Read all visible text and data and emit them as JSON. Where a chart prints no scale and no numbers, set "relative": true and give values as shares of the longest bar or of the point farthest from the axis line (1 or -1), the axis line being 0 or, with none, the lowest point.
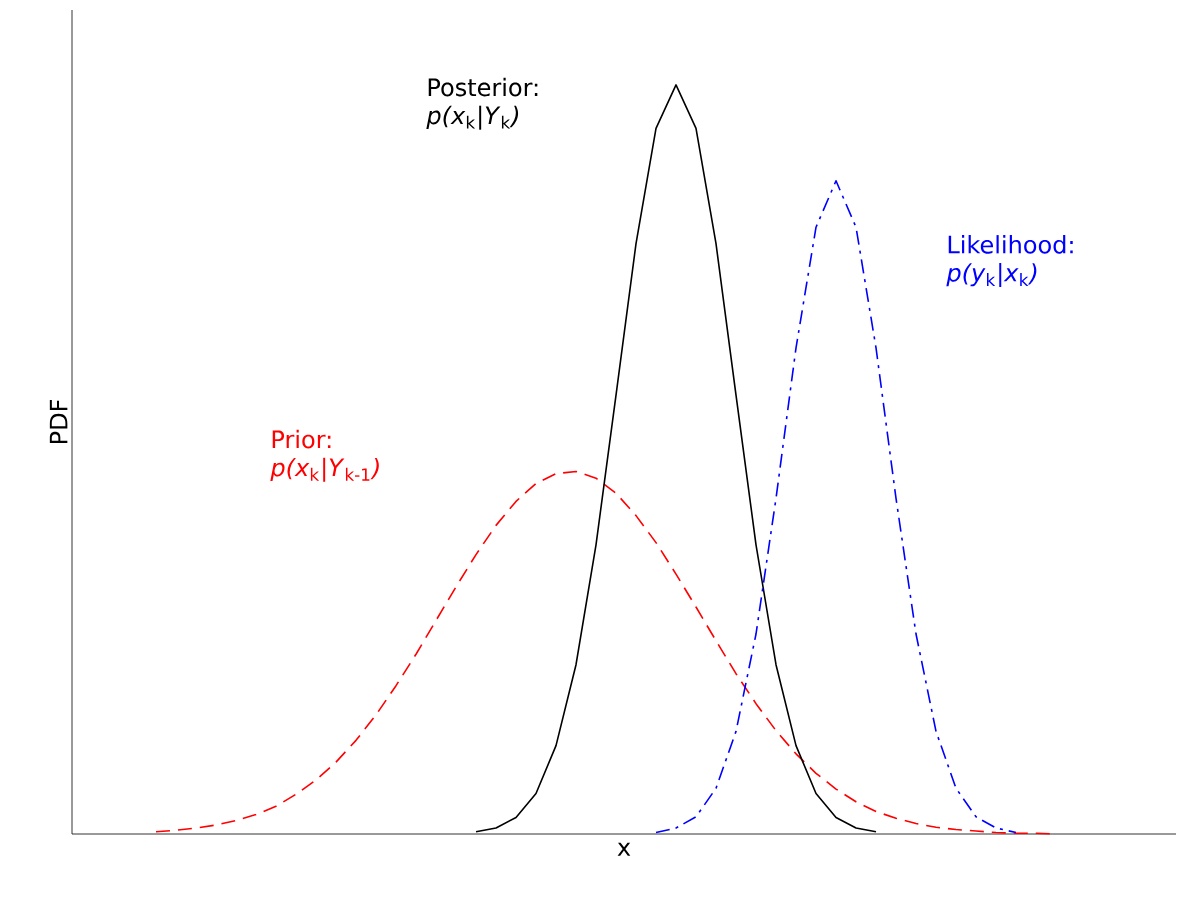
{
  "chart_data": {
    "type": "line",
    "relative": true,
    "xlabel": "x",
    "ylabel": "PDF",
    "categories": [
      null,
      null,
      null,
      null,
      null,
      null,
      null,
      null,
      null,
      null,
      null,
      null,
      null,
      null,
      null,
      null,
      null,
      null,
      null,
      null,
      null,
      null,
      null,
      null,
      null,
      null,
      null,
      null,
      null,
      null,
      null,
      null,
      null,
      null,
      null,
      null,
      null,
      null,
      null,
      null,
      null,
      null,
      null,
      null,
      null,
      null,
      null,
      null,
      null,
      null,
      null,
      null,
      null,
      null,
      null
    ],
    "series": [
      {
        "name": "Prior: *p(x*$_{k}$*|Y*$_{k-1}$*)*",
        "color": "#ff0000",
        "line_style": "dashed",
        "values": [
          null,
          null,
          null,
          null,
          0.003,
          0.005,
          0.008,
          0.012,
          0.018,
          0.026,
          0.037,
          0.053,
          0.072,
          0.096,
          0.125,
          0.159,
          0.198,
          0.24,
          0.285,
          0.33,
          0.373,
          0.412,
          0.444,
          0.468,
          0.481,
          0.484,
          0.475,
          0.455,
          0.425,
          0.389,
          0.347,
          0.303,
          0.258,
          0.214,
          0.174,
          0.138,
          0.107,
          0.081,
          0.06,
          0.043,
          0.03,
          0.021,
          0.014,
          0.009,
          0.006,
          0.004,
          0.002,
          0.001,
          0.001,
          0,
          null,
          null,
          null,
          null,
          null
        ]
      },
      {
        "name": "Posterior: *p(x*$_{k}$*|Y*$_{k}$*)*",
        "color": "#000000",
        "line_style": "solid",
        "values": [
          null,
          null,
          null,
          null,
          null,
          null,
          null,
          null,
          null,
          null,
          null,
          null,
          null,
          null,
          null,
          null,
          null,
          null,
          null,
          null,
          0.003,
          0.008,
          0.022,
          0.054,
          0.118,
          0.226,
          0.386,
          0.586,
          0.788,
          0.942,
          1,
          0.942,
          0.788,
          0.586,
          0.386,
          0.226,
          0.118,
          0.054,
          0.022,
          0.008,
          0.003,
          null,
          null,
          null,
          null,
          null,
          null,
          null,
          null,
          null,
          null,
          null,
          null,
          null,
          null
        ]
      },
      {
        "name": "Likelihood: *p(y*$_{k}$*|x*$_{k}$*)*",
        "color": "#0000ff",
        "line_style": "dashdot",
        "values": [
          null,
          null,
          null,
          null,
          null,
          null,
          null,
          null,
          null,
          null,
          null,
          null,
          null,
          null,
          null,
          null,
          null,
          null,
          null,
          null,
          null,
          null,
          null,
          null,
          null,
          null,
          null,
          null,
          null,
          0.002,
          0.008,
          0.023,
          0.061,
          0.137,
          0.267,
          0.448,
          0.649,
          0.81,
          0.872,
          0.81,
          0.649,
          0.448,
          0.267,
          0.137,
          0.061,
          0.023,
          0.008,
          0.002,
          null,
          null,
          null,
          null,
          null,
          null,
          null
        ]
      }
    ]
  }
}
